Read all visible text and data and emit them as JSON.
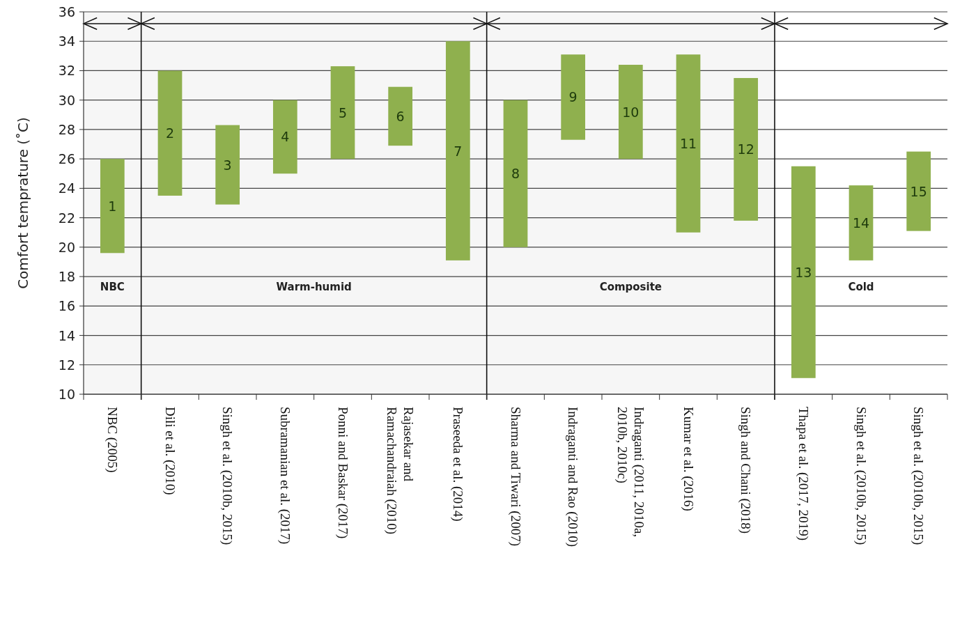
{
  "chart_data": {
    "type": "bar",
    "ylabel": "Comfort temprature (˚C)",
    "categories": [
      "NBC (2005)",
      "Dili et al. (2010)",
      "Singh et al. (2010b, 2015)",
      "Subramanian et al. (2017)",
      "Ponni and Baskar (2017)",
      "Rajasekar and Ramachandraiah (2010)",
      "Praseeda et al. (2014)",
      "Sharma and Tiwari (2007)",
      "Indraganti and Rao (2010)",
      "Indraganti (2011, 2010a, 2010b, 2010c)",
      "Kumar et al. (2016)",
      "Singh and Chani (2018)",
      "Thapa et al. (2017, 2019)",
      "Singh et al. (2010b, 2015)",
      "Singh et al. (2010b, 2015)"
    ],
    "base": [
      19.6,
      23.5,
      22.9,
      25.0,
      26.0,
      26.9,
      19.1,
      20.0,
      27.3,
      26.0,
      21.0,
      21.8,
      11.1,
      19.1,
      21.1
    ],
    "values": [
      6.4,
      8.5,
      5.4,
      5.0,
      6.3,
      4.0,
      14.9,
      10.0,
      5.8,
      6.4,
      12.1,
      9.7,
      14.4,
      5.1,
      5.4
    ],
    "annotations": [
      "1",
      "2",
      "3",
      "4",
      "5",
      "6",
      "7",
      "8",
      "9",
      "10",
      "11",
      "12",
      "13",
      "14",
      "15",
      "Cold"
    ],
    "color": "#8fb04e",
    "ylim": [
      10,
      36
    ],
    "yticks": [
      10,
      12,
      14,
      16,
      18,
      20,
      22,
      24,
      26,
      28,
      30,
      32,
      34,
      36
    ],
    "grid": "y",
    "bands": [
      {
        "axis": "x",
        "from": "NBC (2005)",
        "to": "NBC (2005)",
        "label": "NBC",
        "color": "#f6f6f6"
      },
      {
        "axis": "x",
        "from": "Dili et al. (2010)",
        "to": "Praseeda et al. (2014)",
        "label": "Warm-humid",
        "color": "#f6f6f6"
      },
      {
        "axis": "x",
        "from": "Sharma and Tiwari (2007)",
        "to": "Singh and Chani (2018)",
        "label": "Composite",
        "color": "#f6f6f6"
      }
    ]
  }
}
